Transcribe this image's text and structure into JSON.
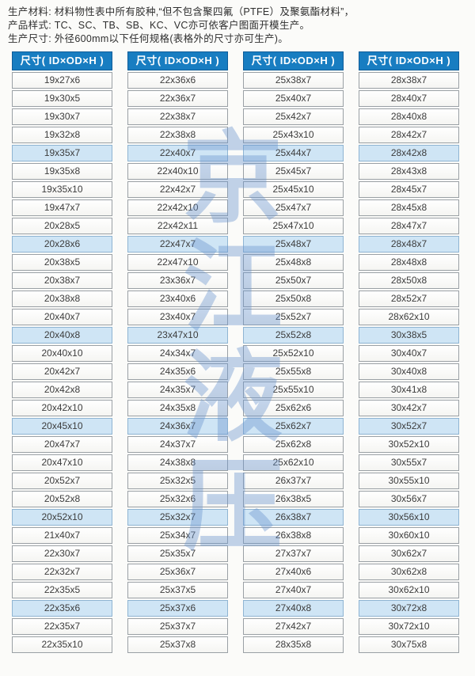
{
  "intro": {
    "lines": [
      "生产材料: 材料物性表中所有胶种,“但不包含聚四氟（PTFE）及聚氨酯材料”，",
      "产品样式: TC、SC、TB、SB、KC、VC亦可依客户图面开模生产。",
      "生产尺寸: 外径600mm以下任何规格(表格外的尺寸亦可生产)。"
    ]
  },
  "table": {
    "header": "尺寸( ID×OD×H )",
    "highlight_rows": [
      5,
      10,
      15,
      20,
      25,
      30
    ],
    "columns": [
      {
        "rows": [
          "19x27x6",
          "19x30x5",
          "19x30x7",
          "19x32x8",
          "19x35x7",
          "19x35x8",
          "19x35x10",
          "19x47x7",
          "20x28x5",
          "20x28x6",
          "20x38x5",
          "20x38x7",
          "20x38x8",
          "20x40x7",
          "20x40x8",
          "20x40x10",
          "20x42x7",
          "20x42x8",
          "20x42x10",
          "20x45x10",
          "20x47x7",
          "20x47x10",
          "20x52x7",
          "20x52x8",
          "20x52x10",
          "21x40x7",
          "22x30x7",
          "22x32x7",
          "22x35x5",
          "22x35x6",
          "22x35x7",
          "22x35x10"
        ]
      },
      {
        "rows": [
          "22x36x6",
          "22x36x7",
          "22x38x7",
          "22x38x8",
          "22x40x7",
          "22x40x10",
          "22x42x7",
          "22x42x10",
          "22x42x11",
          "22x47x7",
          "22x47x10",
          "23x36x7",
          "23x40x6",
          "23x40x7",
          "23x47x10",
          "24x34x7",
          "24x35x6",
          "24x35x7",
          "24x35x8",
          "24x36x7",
          "24x37x7",
          "24x38x8",
          "25x32x5",
          "25x32x6",
          "25x32x7",
          "25x34x7",
          "25x35x7",
          "25x36x7",
          "25x37x5",
          "25x37x6",
          "25x37x7",
          "25x37x8"
        ]
      },
      {
        "rows": [
          "25x38x7",
          "25x40x7",
          "25x42x7",
          "25x43x10",
          "25x44x7",
          "25x45x7",
          "25x45x10",
          "25x47x7",
          "25x47x10",
          "25x48x7",
          "25x48x8",
          "25x50x7",
          "25x50x8",
          "25x52x7",
          "25x52x8",
          "25x52x10",
          "25x55x8",
          "25x55x10",
          "25x62x6",
          "25x62x7",
          "25x62x8",
          "25x62x10",
          "26x37x7",
          "26x38x5",
          "26x38x7",
          "26x38x8",
          "27x37x7",
          "27x40x6",
          "27x40x7",
          "27x40x8",
          "27x42x7",
          "28x35x8"
        ]
      },
      {
        "rows": [
          "28x38x7",
          "28x40x7",
          "28x40x8",
          "28x42x7",
          "28x42x8",
          "28x43x8",
          "28x45x7",
          "28x45x8",
          "28x47x7",
          "28x48x7",
          "28x48x8",
          "28x50x8",
          "28x52x7",
          "28x62x10",
          "30x38x5",
          "30x40x7",
          "30x40x8",
          "30x41x8",
          "30x42x7",
          "30x52x7",
          "30x52x10",
          "30x55x7",
          "30x55x10",
          "30x56x7",
          "30x56x10",
          "30x60x10",
          "30x62x7",
          "30x62x8",
          "30x62x10",
          "30x72x8",
          "30x72x10",
          "30x75x8"
        ]
      }
    ]
  },
  "watermark": {
    "text": "京江液压"
  },
  "colors": {
    "header_bg": "#187dc1",
    "header_border": "#0e5c99",
    "header_text": "#ffffff",
    "row_highlight": "#cfe5f5",
    "cell_border": "#9aa0a5",
    "watermark_blue": "#6a94ce",
    "page_bg": "#fbfbf9",
    "cell_text": "#3c3c3c"
  }
}
